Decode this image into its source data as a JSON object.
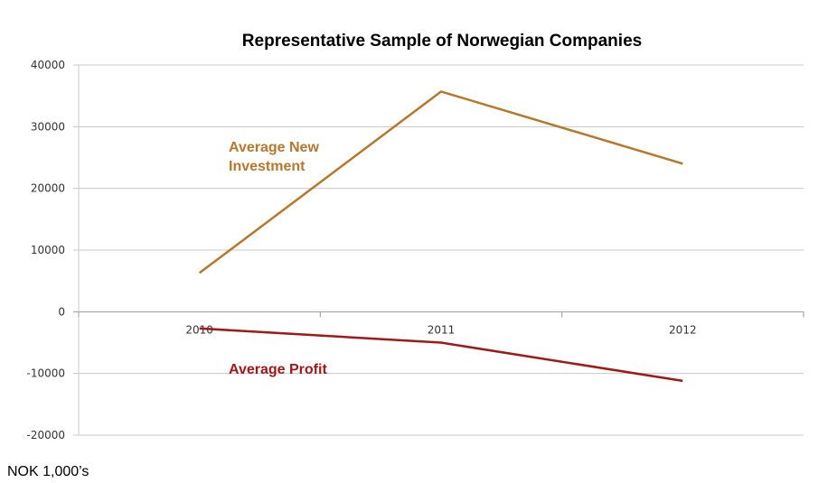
{
  "chart_data": {
    "type": "line",
    "title": "Representative Sample of Norwegian Companies",
    "unit_label": "NOK 1,000’s",
    "categories": [
      "2010",
      "2011",
      "2012"
    ],
    "ylim": [
      -20000,
      40000
    ],
    "yticks": [
      "40000",
      "30000",
      "20000",
      "10000",
      "0",
      "-10000",
      "-20000"
    ],
    "ytick_values": [
      40000,
      30000,
      20000,
      10000,
      0,
      -10000,
      -20000
    ],
    "grid": true,
    "series": [
      {
        "name": "Average New\nInvestment",
        "values": [
          6300,
          35700,
          24000
        ],
        "color": "#b8772a"
      },
      {
        "name": "Average Profit",
        "values": [
          -2700,
          -5000,
          -11200
        ],
        "color": "#a01818"
      }
    ]
  }
}
